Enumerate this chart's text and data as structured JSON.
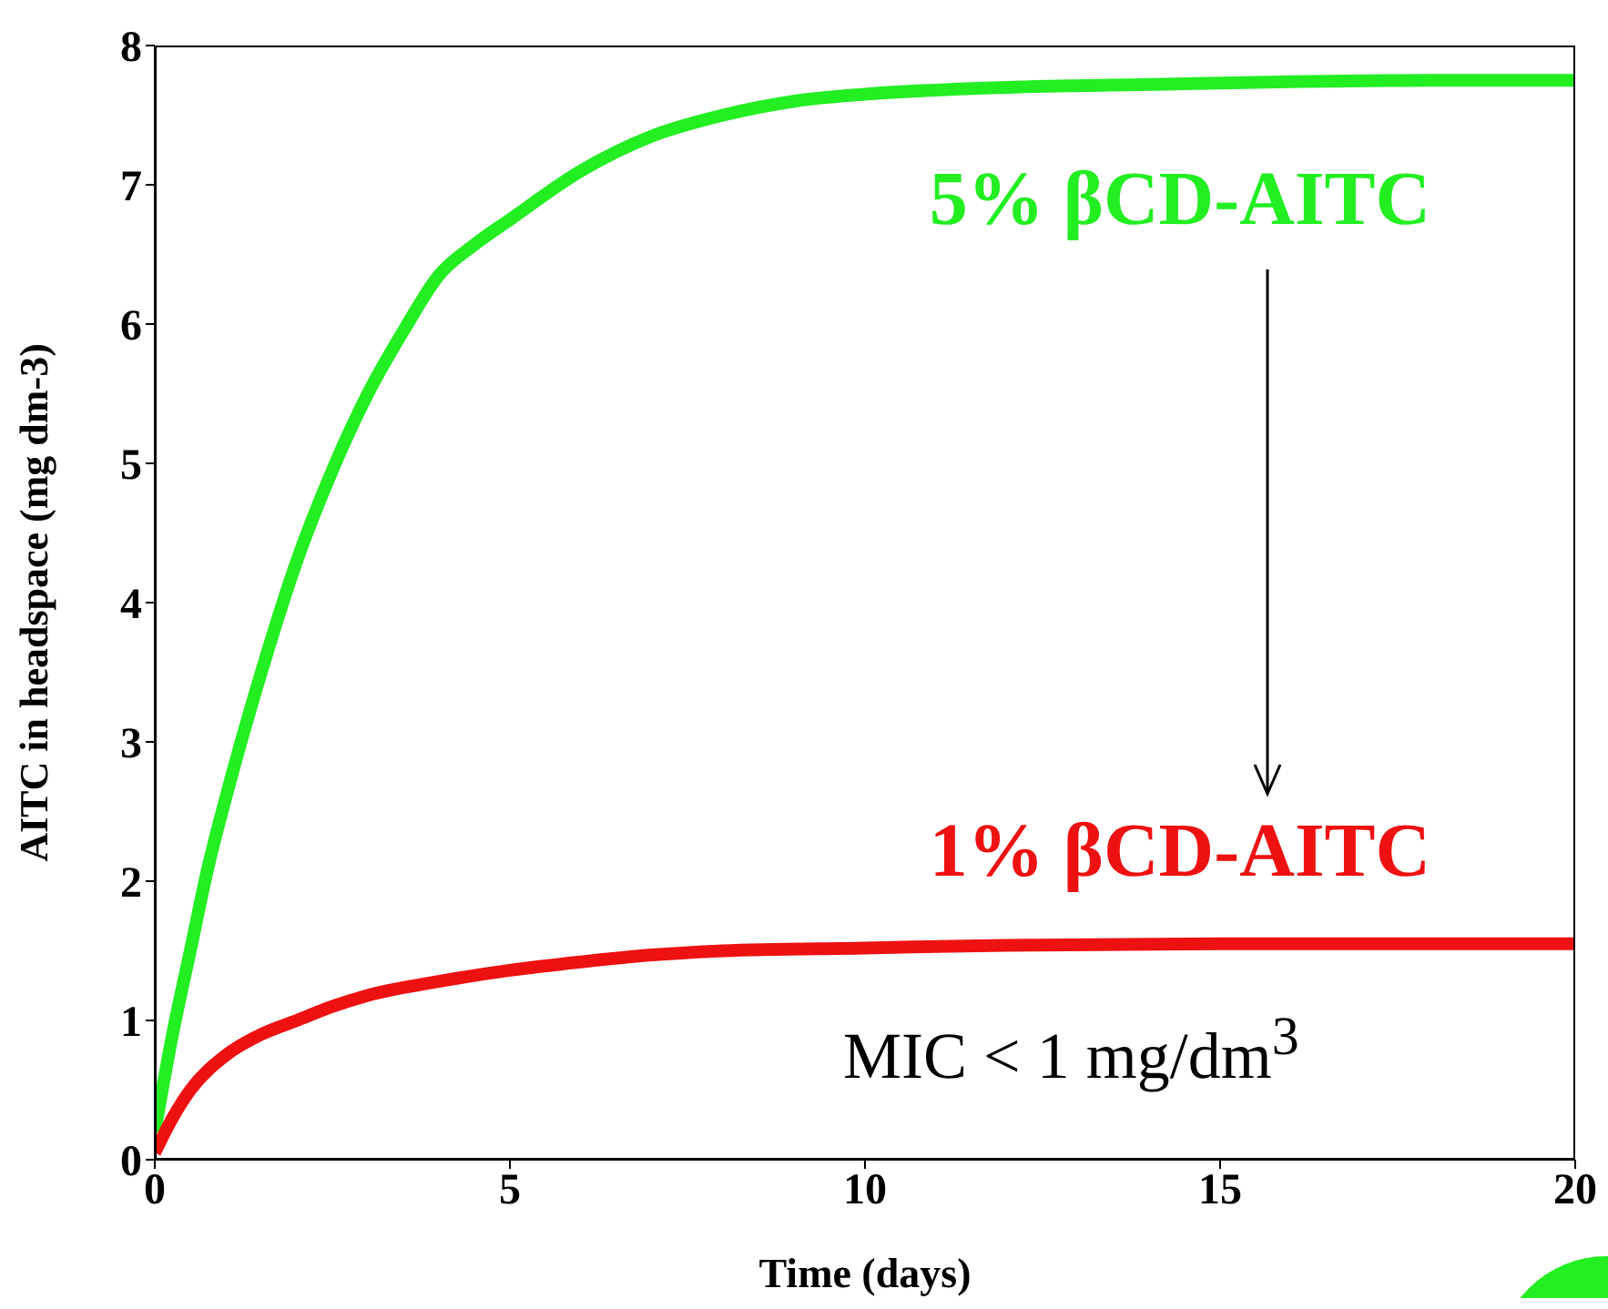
{
  "chart_data": {
    "type": "line",
    "xlabel": "Time (days)",
    "ylabel": "AITC in headspace (mg dm-3)",
    "xlim": [
      0,
      20
    ],
    "xticks": [
      0,
      5,
      10,
      15,
      20
    ],
    "ylim": [
      0,
      8
    ],
    "yticks": [
      0,
      1,
      2,
      3,
      4,
      5,
      6,
      7,
      8
    ],
    "marker": "none",
    "line_style": "solid",
    "series": [
      {
        "name": "5% βCD-AITC",
        "color": "#22ee22",
        "x": [
          0,
          0.25,
          0.5,
          0.75,
          1,
          1.5,
          2,
          2.5,
          3,
          3.5,
          4,
          4.5,
          5,
          6,
          7,
          8,
          9,
          10,
          12,
          14,
          16,
          18,
          20
        ],
        "values": [
          0.2,
          0.9,
          1.5,
          2.1,
          2.6,
          3.5,
          4.3,
          4.95,
          5.5,
          5.95,
          6.35,
          6.57,
          6.75,
          7.1,
          7.35,
          7.5,
          7.6,
          7.65,
          7.7,
          7.72,
          7.74,
          7.75,
          7.75
        ]
      },
      {
        "name": "1% βCD-AITC",
        "color": "#ee1111",
        "x": [
          0,
          0.25,
          0.5,
          1,
          1.5,
          2,
          2.5,
          3,
          4,
          5,
          6,
          7,
          8,
          10,
          12,
          15,
          20
        ],
        "values": [
          0.05,
          0.3,
          0.5,
          0.75,
          0.9,
          1.0,
          1.1,
          1.18,
          1.28,
          1.36,
          1.42,
          1.47,
          1.5,
          1.52,
          1.54,
          1.55,
          1.55
        ]
      }
    ],
    "annotations": [
      "MIC < 1 mg/dm$^{3}$"
    ]
  }
}
